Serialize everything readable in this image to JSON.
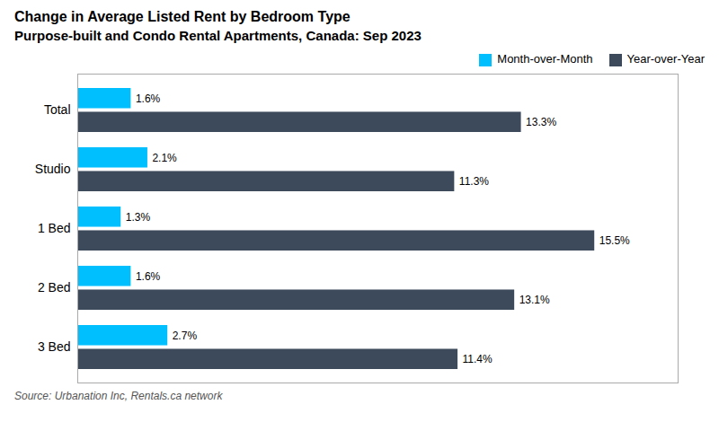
{
  "chart_data": {
    "type": "bar",
    "orientation": "horizontal",
    "title": "Change in Average Listed Rent by Bedroom Type",
    "subtitle": "Purpose-built and Condo Rental Apartments, Canada: Sep 2023",
    "caption": "Source: Urbanation Inc, Rentals.ca network",
    "categories": [
      "Total",
      "Studio",
      "1 Bed",
      "2 Bed",
      "3 Bed"
    ],
    "series": [
      {
        "name": "Month-over-Month",
        "color": "#00BFFF",
        "values": [
          1.6,
          2.1,
          1.3,
          1.6,
          2.7
        ],
        "value_labels": [
          "1.6%",
          "2.1%",
          "1.3%",
          "1.6%",
          "2.7%"
        ]
      },
      {
        "name": "Year-over-Year",
        "color": "#3D4A5C",
        "values": [
          13.3,
          11.3,
          15.5,
          13.1,
          11.4
        ],
        "value_labels": [
          "13.3%",
          "11.3%",
          "15.5%",
          "13.1%",
          "11.4%"
        ]
      }
    ],
    "xlim": [
      0,
      18
    ],
    "data_labels": true,
    "tick_labels": "y",
    "grid": false,
    "legend": "upper right"
  }
}
